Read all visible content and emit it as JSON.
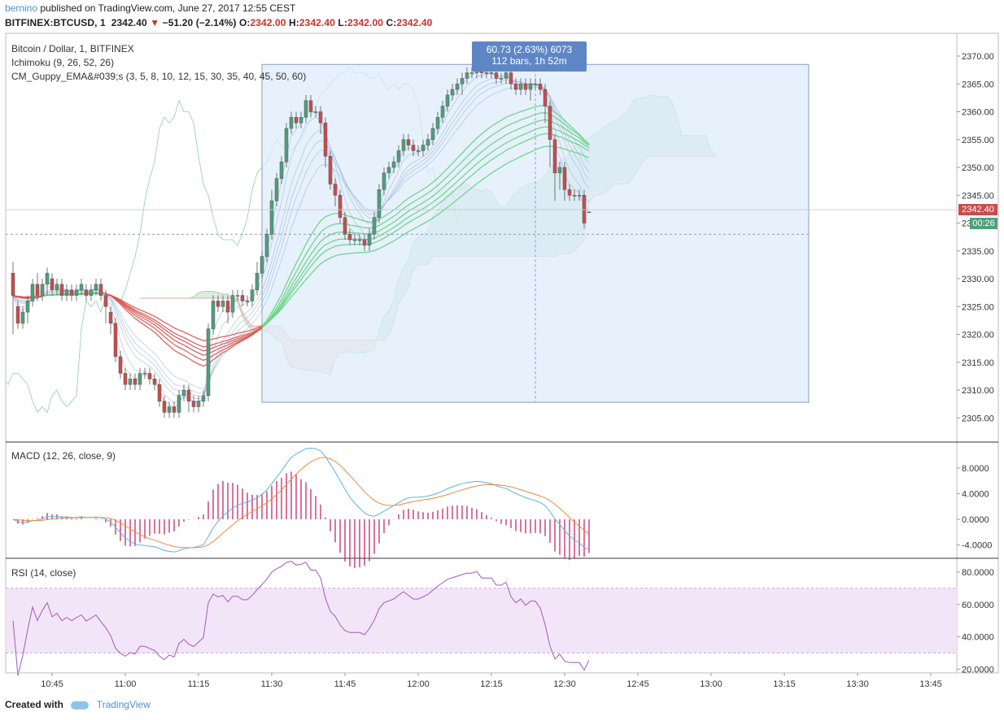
{
  "header": {
    "author": "bernino",
    "published_text": "published on TradingView.com, June 27, 2017 12:55 CEST",
    "symbol_line": "BITFINEX:BTCUSD, 1",
    "price": "2342.40",
    "change": "−51.20 (−2.14%)",
    "o_label": "O:",
    "o_value": "2342.00",
    "h_label": "H:",
    "h_value": "2342.40",
    "l_label": "L:",
    "l_value": "2342.00",
    "c_label": "C:",
    "c_value": "2342.40"
  },
  "legend": {
    "title": "Bitcoin / Dollar, 1, BITFINEX",
    "ichimoku": "Ichimoku (9, 26, 52, 26)",
    "guppy": "CM_Guppy_EMA&#039;s (3, 5, 8, 10, 12, 15, 30, 35, 40, 45, 50, 60)",
    "macd": "MACD (12, 26, close, 9)",
    "rsi": "RSI (14, close)"
  },
  "measure_box": {
    "line1": "60.73 (2.63%) 6073",
    "line2": "112 bars, 1h 52m"
  },
  "price_badge": "2342.40",
  "time_badge": "00:26",
  "footer": {
    "created_with": "Created with",
    "brand": "TradingView"
  },
  "colors": {
    "up": "#4f9f7d",
    "down": "#c94c4c",
    "macd": "#5ab4e6",
    "signal": "#f0883e",
    "hist": "#c2185b",
    "rsi": "#a259b8",
    "rsi_band": "#f3e5f8",
    "measure_fill": "#deecfb",
    "measure_border": "#8a9cc0",
    "cloud_green": "#b8dcc6",
    "cloud_red": "#f2c4c4",
    "guppy_green": "#66d37d",
    "guppy_red": "#d9534f"
  },
  "chart_data": {
    "type": "candlestick",
    "time_labels": [
      "10:45",
      "11:00",
      "11:15",
      "11:30",
      "11:45",
      "12:00",
      "12:15",
      "12:30",
      "12:45",
      "13:00",
      "13:15",
      "13:30",
      "13:45"
    ],
    "price_ticks": [
      "2370.00",
      "2365.00",
      "2360.00",
      "2355.00",
      "2350.00",
      "2345.00",
      "2340.00",
      "2335.00",
      "2330.00",
      "2325.00",
      "2320.00",
      "2315.00",
      "2310.00",
      "2305.00"
    ],
    "price_range": [
      2302.5,
      2373
    ],
    "macd_ticks": [
      "8.0000",
      "4.0000",
      "0.0000",
      "-4.0000"
    ],
    "macd_range": [
      -8,
      12
    ],
    "rsi_ticks": [
      "80.0000",
      "60.0000",
      "40.0000",
      "20.0000"
    ],
    "rsi_range": [
      16,
      87
    ],
    "rsi_band": [
      30,
      70
    ],
    "start_time": "10:37",
    "candles": [
      [
        2331,
        2327,
        2333,
        2320
      ],
      [
        2325,
        2322,
        2326,
        2321
      ],
      [
        2322,
        2324,
        2325,
        2321
      ],
      [
        2324,
        2326,
        2327,
        2322
      ],
      [
        2326,
        2329,
        2330,
        2325
      ],
      [
        2329,
        2327,
        2331,
        2326
      ],
      [
        2327,
        2329,
        2330,
        2326
      ],
      [
        2329,
        2331,
        2332,
        2327
      ],
      [
        2330,
        2328,
        2331,
        2327
      ],
      [
        2328,
        2329,
        2330,
        2327
      ],
      [
        2329,
        2327,
        2330,
        2326
      ],
      [
        2327,
        2328,
        2329,
        2326
      ],
      [
        2328,
        2327,
        2329,
        2326
      ],
      [
        2327,
        2328,
        2329,
        2326
      ],
      [
        2328,
        2329,
        2330,
        2327
      ],
      [
        2328,
        2327,
        2329,
        2326
      ],
      [
        2327,
        2328,
        2329,
        2326
      ],
      [
        2328,
        2329,
        2330,
        2327
      ],
      [
        2329,
        2327,
        2330,
        2326
      ],
      [
        2327,
        2325,
        2328,
        2322
      ],
      [
        2324,
        2322,
        2325,
        2320
      ],
      [
        2322,
        2316,
        2323,
        2315
      ],
      [
        2316,
        2313,
        2317,
        2312
      ],
      [
        2313,
        2311,
        2314,
        2310
      ],
      [
        2311,
        2312,
        2313,
        2310
      ],
      [
        2312,
        2311,
        2313,
        2310
      ],
      [
        2311,
        2313,
        2314,
        2310
      ],
      [
        2313,
        2313,
        2314,
        2312
      ],
      [
        2313,
        2312,
        2314,
        2311
      ],
      [
        2312,
        2311,
        2313,
        2310
      ],
      [
        2311,
        2308,
        2312,
        2307
      ],
      [
        2308,
        2306,
        2309,
        2305
      ],
      [
        2306,
        2307,
        2308,
        2305
      ],
      [
        2307,
        2306,
        2308,
        2305
      ],
      [
        2306,
        2309,
        2310,
        2305
      ],
      [
        2309,
        2310,
        2311,
        2308
      ],
      [
        2310,
        2308,
        2311,
        2306
      ],
      [
        2308,
        2307,
        2309,
        2306
      ],
      [
        2307,
        2308,
        2309,
        2306
      ],
      [
        2308,
        2309,
        2310,
        2307
      ],
      [
        2309,
        2321,
        2322,
        2308
      ],
      [
        2321,
        2326,
        2327,
        2320
      ],
      [
        2326,
        2325,
        2327,
        2324
      ],
      [
        2325,
        2326,
        2327,
        2324
      ],
      [
        2326,
        2324,
        2327,
        2322
      ],
      [
        2324,
        2327,
        2328,
        2323
      ],
      [
        2327,
        2327,
        2328,
        2326
      ],
      [
        2327,
        2326,
        2328,
        2325
      ],
      [
        2326,
        2326,
        2327,
        2325
      ],
      [
        2326,
        2328,
        2329,
        2325
      ],
      [
        2328,
        2331,
        2333,
        2327
      ],
      [
        2331,
        2334,
        2335,
        2330
      ],
      [
        2334,
        2338,
        2339,
        2333
      ],
      [
        2338,
        2344,
        2346,
        2337
      ],
      [
        2344,
        2348,
        2349,
        2343
      ],
      [
        2348,
        2351,
        2352,
        2347
      ],
      [
        2351,
        2357,
        2358,
        2350
      ],
      [
        2357,
        2359,
        2360,
        2356
      ],
      [
        2359,
        2358,
        2360,
        2357
      ],
      [
        2358,
        2359,
        2360,
        2357
      ],
      [
        2359,
        2362,
        2363,
        2358
      ],
      [
        2362,
        2360,
        2363,
        2359
      ],
      [
        2360,
        2360,
        2361,
        2359
      ],
      [
        2360,
        2358,
        2361,
        2356
      ],
      [
        2358,
        2352,
        2359,
        2350
      ],
      [
        2352,
        2347,
        2353,
        2346
      ],
      [
        2347,
        2345,
        2348,
        2343
      ],
      [
        2345,
        2341,
        2346,
        2340
      ],
      [
        2341,
        2338,
        2342,
        2337
      ],
      [
        2338,
        2337,
        2339,
        2336
      ],
      [
        2337,
        2337,
        2338,
        2336
      ],
      [
        2337,
        2337,
        2338,
        2336
      ],
      [
        2337,
        2336,
        2338,
        2335
      ],
      [
        2336,
        2338,
        2339,
        2335
      ],
      [
        2338,
        2341,
        2342,
        2337
      ],
      [
        2341,
        2346,
        2347,
        2340
      ],
      [
        2346,
        2349,
        2350,
        2345
      ],
      [
        2349,
        2350,
        2351,
        2348
      ],
      [
        2350,
        2351,
        2352,
        2349
      ],
      [
        2351,
        2353,
        2354,
        2350
      ],
      [
        2353,
        2355,
        2356,
        2352
      ],
      [
        2355,
        2354,
        2356,
        2353
      ],
      [
        2354,
        2353,
        2355,
        2352
      ],
      [
        2353,
        2353,
        2354,
        2352
      ],
      [
        2353,
        2354,
        2355,
        2352
      ],
      [
        2354,
        2355,
        2356,
        2353
      ],
      [
        2355,
        2357,
        2358,
        2354
      ],
      [
        2357,
        2359,
        2360,
        2356
      ],
      [
        2359,
        2361,
        2362,
        2358
      ],
      [
        2361,
        2363,
        2364,
        2360
      ],
      [
        2363,
        2364,
        2365,
        2362
      ],
      [
        2364,
        2365,
        2366,
        2363
      ],
      [
        2365,
        2366,
        2367,
        2363
      ],
      [
        2366,
        2367,
        2368,
        2365
      ],
      [
        2367,
        2367,
        2368,
        2366
      ],
      [
        2367,
        2368,
        2369,
        2366
      ],
      [
        2368,
        2367,
        2369,
        2366
      ],
      [
        2367,
        2367,
        2368,
        2366
      ],
      [
        2367,
        2367,
        2368,
        2366
      ],
      [
        2367,
        2366,
        2368,
        2365
      ],
      [
        2366,
        2366,
        2367,
        2365
      ],
      [
        2366,
        2367,
        2368,
        2365
      ],
      [
        2367,
        2365,
        2368,
        2364
      ],
      [
        2365,
        2364,
        2366,
        2363
      ],
      [
        2364,
        2365,
        2366,
        2363
      ],
      [
        2365,
        2364,
        2366,
        2363
      ],
      [
        2364,
        2365,
        2366,
        2362
      ],
      [
        2365,
        2365,
        2366,
        2364
      ],
      [
        2365,
        2364,
        2366,
        2363
      ],
      [
        2364,
        2361,
        2365,
        2358
      ],
      [
        2361,
        2355,
        2362,
        2350
      ],
      [
        2355,
        2349,
        2356,
        2344
      ],
      [
        2349,
        2350,
        2351,
        2346
      ],
      [
        2350,
        2346,
        2351,
        2344
      ],
      [
        2346,
        2345,
        2347,
        2344
      ],
      [
        2345,
        2345,
        2346,
        2344
      ],
      [
        2345,
        2345,
        2346,
        2344
      ],
      [
        2345,
        2340,
        2346,
        2339
      ],
      [
        2342,
        2342,
        2342,
        2342
      ]
    ],
    "measure": {
      "from_time": "11:28",
      "to_time": "13:20",
      "from_price": "2307.8",
      "to_price": "2368.5",
      "change": "60.73 (2.63%) 6073",
      "bars": "112 bars, 1h 52m"
    }
  }
}
